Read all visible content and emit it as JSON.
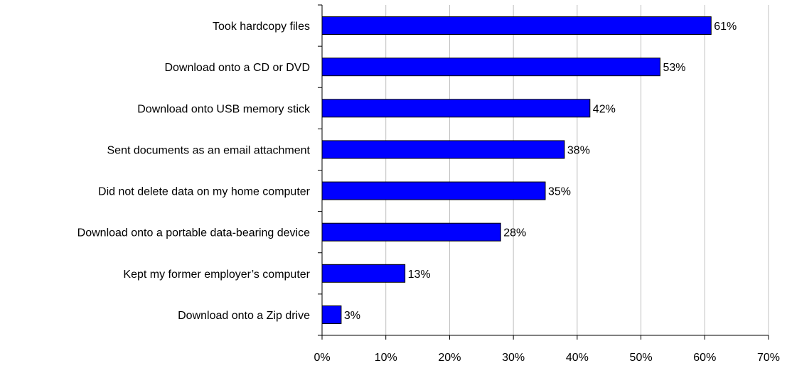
{
  "chart_data": {
    "type": "bar",
    "orientation": "horizontal",
    "categories": [
      "Took hardcopy files",
      "Download onto a CD or DVD",
      "Download onto USB memory stick",
      "Sent documents as an email attachment",
      "Did not delete data on my home computer",
      "Download onto a portable data-bearing device",
      "Kept my former employer’s computer",
      "Download onto a Zip drive"
    ],
    "values": [
      61,
      53,
      42,
      38,
      35,
      28,
      13,
      3
    ],
    "value_labels": [
      "61%",
      "53%",
      "42%",
      "38%",
      "35%",
      "28%",
      "13%",
      "3%"
    ],
    "x_ticks": [
      0,
      10,
      20,
      30,
      40,
      50,
      60,
      70
    ],
    "x_tick_labels": [
      "0%",
      "10%",
      "20%",
      "30%",
      "40%",
      "50%",
      "60%",
      "70%"
    ],
    "xlim": [
      0,
      70
    ],
    "grid": "vertical",
    "legend": "none",
    "title": "",
    "xlabel": "",
    "ylabel": "",
    "bar_color": "#0000FF",
    "bar_edge_color": "#000000",
    "grid_color": "#C0C0C0"
  }
}
